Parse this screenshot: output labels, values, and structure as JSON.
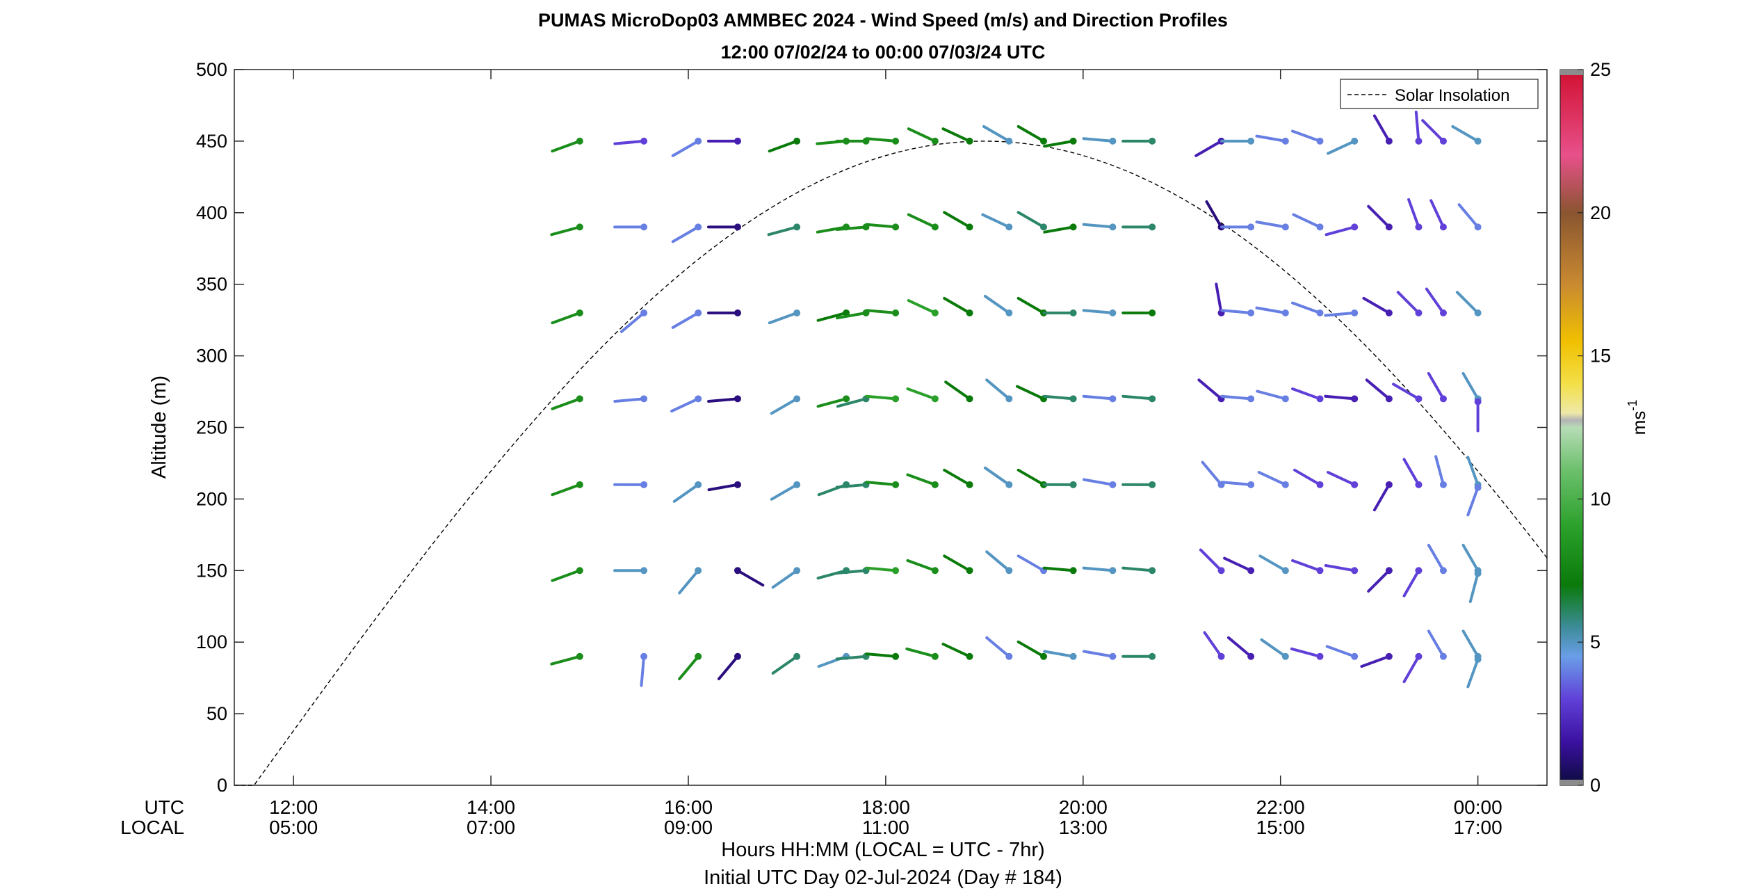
{
  "chart_data": {
    "type": "wind-barb-profile",
    "title": "PUMAS MicroDop03 AMMBEC 2024 - Wind Speed (m/s) and Direction Profiles",
    "subtitle": "12:00 07/02/24 to 00:00 07/03/24  UTC",
    "ylabel": "Altitude (m)",
    "ylim": [
      0,
      500
    ],
    "yticks": [
      "0",
      "50",
      "100",
      "150",
      "200",
      "250",
      "300",
      "350",
      "400",
      "450",
      "500"
    ],
    "xlim_hours": [
      11.4,
      24.7
    ],
    "xticks_utc": [
      "12:00",
      "14:00",
      "16:00",
      "18:00",
      "20:00",
      "22:00",
      "00:00"
    ],
    "xticks_local": [
      "05:00",
      "07:00",
      "09:00",
      "11:00",
      "13:00",
      "15:00",
      "17:00"
    ],
    "xtick_hours": [
      12,
      14,
      16,
      18,
      20,
      22,
      24
    ],
    "row_label_utc": "UTC",
    "row_label_local": "LOCAL",
    "xlabel": "Hours HH:MM  (LOCAL = UTC - 7hr)",
    "xlabel2": "Initial UTC Day 02-Jul-2024 (Day # 184)",
    "legend": {
      "label": "Solar Insolation",
      "placement": "top-right"
    },
    "colorbar": {
      "range": [
        0,
        25
      ],
      "ticks": [
        "0",
        "5",
        "10",
        "15",
        "20",
        "25"
      ],
      "label": "ms",
      "label_exponent": "-1"
    },
    "solar_curve": {
      "start_hour": 11.6,
      "peak_hour": 19.0,
      "peak_altitude": 450,
      "style": "dashed"
    },
    "times_hours": [
      14.9,
      15.55,
      16.1,
      16.5,
      17.1,
      17.6,
      17.8,
      18.1,
      18.5,
      18.85,
      19.25,
      19.6,
      19.9,
      20.3,
      20.7,
      21.4,
      21.7,
      22.05,
      22.4,
      22.75,
      23.1,
      23.4,
      23.65,
      24.0
    ],
    "altitudes": [
      90,
      150,
      210,
      270,
      330,
      390,
      450
    ],
    "vectors": [
      {
        "t": 14.9,
        "z": 90,
        "dir": 255,
        "spd": 8
      },
      {
        "t": 14.9,
        "z": 150,
        "dir": 250,
        "spd": 8
      },
      {
        "t": 14.9,
        "z": 210,
        "dir": 250,
        "spd": 8
      },
      {
        "t": 14.9,
        "z": 270,
        "dir": 250,
        "spd": 8
      },
      {
        "t": 14.9,
        "z": 330,
        "dir": 250,
        "spd": 8
      },
      {
        "t": 14.9,
        "z": 390,
        "dir": 255,
        "spd": 8
      },
      {
        "t": 14.9,
        "z": 450,
        "dir": 250,
        "spd": 8
      },
      {
        "t": 15.55,
        "z": 90,
        "dir": 185,
        "spd": 4
      },
      {
        "t": 15.55,
        "z": 150,
        "dir": 270,
        "spd": 5
      },
      {
        "t": 15.55,
        "z": 210,
        "dir": 270,
        "spd": 4
      },
      {
        "t": 15.55,
        "z": 270,
        "dir": 265,
        "spd": 4
      },
      {
        "t": 15.55,
        "z": 330,
        "dir": 230,
        "spd": 4
      },
      {
        "t": 15.55,
        "z": 390,
        "dir": 270,
        "spd": 4
      },
      {
        "t": 15.55,
        "z": 450,
        "dir": 265,
        "spd": 3
      },
      {
        "t": 16.1,
        "z": 90,
        "dir": 220,
        "spd": 8
      },
      {
        "t": 16.1,
        "z": 150,
        "dir": 220,
        "spd": 5
      },
      {
        "t": 16.1,
        "z": 210,
        "dir": 235,
        "spd": 5
      },
      {
        "t": 16.1,
        "z": 270,
        "dir": 245,
        "spd": 4
      },
      {
        "t": 16.1,
        "z": 330,
        "dir": 240,
        "spd": 4
      },
      {
        "t": 16.1,
        "z": 390,
        "dir": 240,
        "spd": 4
      },
      {
        "t": 16.1,
        "z": 450,
        "dir": 240,
        "spd": 4
      },
      {
        "t": 16.5,
        "z": 90,
        "dir": 220,
        "spd": 1
      },
      {
        "t": 16.5,
        "z": 150,
        "dir": 120,
        "spd": 1
      },
      {
        "t": 16.5,
        "z": 210,
        "dir": 260,
        "spd": 1
      },
      {
        "t": 16.5,
        "z": 270,
        "dir": 265,
        "spd": 1
      },
      {
        "t": 16.5,
        "z": 330,
        "dir": 270,
        "spd": 1
      },
      {
        "t": 16.5,
        "z": 390,
        "dir": 270,
        "spd": 1
      },
      {
        "t": 16.5,
        "z": 450,
        "dir": 270,
        "spd": 2
      },
      {
        "t": 17.1,
        "z": 90,
        "dir": 235,
        "spd": 6
      },
      {
        "t": 17.1,
        "z": 150,
        "dir": 235,
        "spd": 5
      },
      {
        "t": 17.1,
        "z": 210,
        "dir": 240,
        "spd": 5
      },
      {
        "t": 17.1,
        "z": 270,
        "dir": 240,
        "spd": 5
      },
      {
        "t": 17.1,
        "z": 330,
        "dir": 250,
        "spd": 5
      },
      {
        "t": 17.1,
        "z": 390,
        "dir": 255,
        "spd": 6
      },
      {
        "t": 17.1,
        "z": 450,
        "dir": 250,
        "spd": 7
      },
      {
        "t": 17.6,
        "z": 90,
        "dir": 250,
        "spd": 5
      },
      {
        "t": 17.6,
        "z": 150,
        "dir": 255,
        "spd": 6
      },
      {
        "t": 17.6,
        "z": 210,
        "dir": 250,
        "spd": 6
      },
      {
        "t": 17.6,
        "z": 270,
        "dir": 255,
        "spd": 8
      },
      {
        "t": 17.6,
        "z": 330,
        "dir": 255,
        "spd": 7
      },
      {
        "t": 17.6,
        "z": 390,
        "dir": 260,
        "spd": 8
      },
      {
        "t": 17.6,
        "z": 450,
        "dir": 265,
        "spd": 8
      },
      {
        "t": 17.8,
        "z": 90,
        "dir": 265,
        "spd": 6
      },
      {
        "t": 17.8,
        "z": 150,
        "dir": 265,
        "spd": 6
      },
      {
        "t": 17.8,
        "z": 210,
        "dir": 265,
        "spd": 6
      },
      {
        "t": 17.8,
        "z": 270,
        "dir": 255,
        "spd": 6
      },
      {
        "t": 17.8,
        "z": 330,
        "dir": 260,
        "spd": 8
      },
      {
        "t": 17.8,
        "z": 390,
        "dir": 265,
        "spd": 8
      },
      {
        "t": 17.8,
        "z": 450,
        "dir": 270,
        "spd": 8
      },
      {
        "t": 18.1,
        "z": 90,
        "dir": 275,
        "spd": 7
      },
      {
        "t": 18.1,
        "z": 150,
        "dir": 275,
        "spd": 9
      },
      {
        "t": 18.1,
        "z": 210,
        "dir": 275,
        "spd": 8
      },
      {
        "t": 18.1,
        "z": 270,
        "dir": 275,
        "spd": 9
      },
      {
        "t": 18.1,
        "z": 330,
        "dir": 275,
        "spd": 8
      },
      {
        "t": 18.1,
        "z": 390,
        "dir": 275,
        "spd": 8
      },
      {
        "t": 18.1,
        "z": 450,
        "dir": 275,
        "spd": 8
      },
      {
        "t": 18.5,
        "z": 90,
        "dir": 285,
        "spd": 8
      },
      {
        "t": 18.5,
        "z": 150,
        "dir": 290,
        "spd": 8
      },
      {
        "t": 18.5,
        "z": 210,
        "dir": 290,
        "spd": 8
      },
      {
        "t": 18.5,
        "z": 270,
        "dir": 290,
        "spd": 9
      },
      {
        "t": 18.5,
        "z": 330,
        "dir": 295,
        "spd": 9
      },
      {
        "t": 18.5,
        "z": 390,
        "dir": 295,
        "spd": 8
      },
      {
        "t": 18.5,
        "z": 450,
        "dir": 295,
        "spd": 8
      },
      {
        "t": 18.85,
        "z": 90,
        "dir": 295,
        "spd": 7
      },
      {
        "t": 18.85,
        "z": 150,
        "dir": 300,
        "spd": 7
      },
      {
        "t": 18.85,
        "z": 210,
        "dir": 300,
        "spd": 7
      },
      {
        "t": 18.85,
        "z": 270,
        "dir": 305,
        "spd": 7
      },
      {
        "t": 18.85,
        "z": 330,
        "dir": 300,
        "spd": 7
      },
      {
        "t": 18.85,
        "z": 390,
        "dir": 300,
        "spd": 7
      },
      {
        "t": 18.85,
        "z": 450,
        "dir": 295,
        "spd": 7
      },
      {
        "t": 19.25,
        "z": 90,
        "dir": 310,
        "spd": 4
      },
      {
        "t": 19.25,
        "z": 150,
        "dir": 310,
        "spd": 5
      },
      {
        "t": 19.25,
        "z": 210,
        "dir": 305,
        "spd": 5
      },
      {
        "t": 19.25,
        "z": 270,
        "dir": 310,
        "spd": 5
      },
      {
        "t": 19.25,
        "z": 330,
        "dir": 305,
        "spd": 5
      },
      {
        "t": 19.25,
        "z": 390,
        "dir": 295,
        "spd": 5
      },
      {
        "t": 19.25,
        "z": 450,
        "dir": 300,
        "spd": 5
      },
      {
        "t": 19.6,
        "z": 90,
        "dir": 300,
        "spd": 7
      },
      {
        "t": 19.6,
        "z": 150,
        "dir": 300,
        "spd": 4
      },
      {
        "t": 19.6,
        "z": 210,
        "dir": 300,
        "spd": 7
      },
      {
        "t": 19.6,
        "z": 270,
        "dir": 295,
        "spd": 7
      },
      {
        "t": 19.6,
        "z": 330,
        "dir": 300,
        "spd": 7
      },
      {
        "t": 19.6,
        "z": 390,
        "dir": 300,
        "spd": 6
      },
      {
        "t": 19.6,
        "z": 450,
        "dir": 300,
        "spd": 7
      },
      {
        "t": 19.9,
        "z": 90,
        "dir": 280,
        "spd": 5
      },
      {
        "t": 19.9,
        "z": 150,
        "dir": 275,
        "spd": 7
      },
      {
        "t": 19.9,
        "z": 210,
        "dir": 270,
        "spd": 6
      },
      {
        "t": 19.9,
        "z": 270,
        "dir": 275,
        "spd": 6
      },
      {
        "t": 19.9,
        "z": 330,
        "dir": 270,
        "spd": 6
      },
      {
        "t": 19.9,
        "z": 390,
        "dir": 260,
        "spd": 7
      },
      {
        "t": 19.9,
        "z": 450,
        "dir": 260,
        "spd": 7
      },
      {
        "t": 20.3,
        "z": 90,
        "dir": 280,
        "spd": 4
      },
      {
        "t": 20.3,
        "z": 150,
        "dir": 275,
        "spd": 5
      },
      {
        "t": 20.3,
        "z": 210,
        "dir": 280,
        "spd": 4
      },
      {
        "t": 20.3,
        "z": 270,
        "dir": 275,
        "spd": 4
      },
      {
        "t": 20.3,
        "z": 330,
        "dir": 275,
        "spd": 5
      },
      {
        "t": 20.3,
        "z": 390,
        "dir": 275,
        "spd": 5
      },
      {
        "t": 20.3,
        "z": 450,
        "dir": 275,
        "spd": 5
      },
      {
        "t": 20.7,
        "z": 90,
        "dir": 270,
        "spd": 6
      },
      {
        "t": 20.7,
        "z": 150,
        "dir": 275,
        "spd": 6
      },
      {
        "t": 20.7,
        "z": 210,
        "dir": 270,
        "spd": 6
      },
      {
        "t": 20.7,
        "z": 270,
        "dir": 275,
        "spd": 6
      },
      {
        "t": 20.7,
        "z": 330,
        "dir": 270,
        "spd": 7
      },
      {
        "t": 20.7,
        "z": 390,
        "dir": 270,
        "spd": 6
      },
      {
        "t": 20.7,
        "z": 450,
        "dir": 270,
        "spd": 6
      },
      {
        "t": 21.4,
        "z": 90,
        "dir": 325,
        "spd": 3
      },
      {
        "t": 21.4,
        "z": 150,
        "dir": 315,
        "spd": 3
      },
      {
        "t": 21.4,
        "z": 210,
        "dir": 320,
        "spd": 4
      },
      {
        "t": 21.4,
        "z": 270,
        "dir": 310,
        "spd": 2
      },
      {
        "t": 21.4,
        "z": 330,
        "dir": 350,
        "spd": 2
      },
      {
        "t": 21.4,
        "z": 390,
        "dir": 330,
        "spd": 1
      },
      {
        "t": 21.4,
        "z": 450,
        "dir": 240,
        "spd": 2
      },
      {
        "t": 21.7,
        "z": 90,
        "dir": 310,
        "spd": 2
      },
      {
        "t": 21.7,
        "z": 150,
        "dir": 295,
        "spd": 2
      },
      {
        "t": 21.7,
        "z": 210,
        "dir": 275,
        "spd": 4
      },
      {
        "t": 21.7,
        "z": 270,
        "dir": 275,
        "spd": 4
      },
      {
        "t": 21.7,
        "z": 330,
        "dir": 275,
        "spd": 4
      },
      {
        "t": 21.7,
        "z": 390,
        "dir": 270,
        "spd": 4
      },
      {
        "t": 21.7,
        "z": 450,
        "dir": 270,
        "spd": 5
      },
      {
        "t": 22.05,
        "z": 90,
        "dir": 305,
        "spd": 5
      },
      {
        "t": 22.05,
        "z": 150,
        "dir": 300,
        "spd": 5
      },
      {
        "t": 22.05,
        "z": 210,
        "dir": 295,
        "spd": 4
      },
      {
        "t": 22.05,
        "z": 270,
        "dir": 285,
        "spd": 4
      },
      {
        "t": 22.05,
        "z": 330,
        "dir": 280,
        "spd": 4
      },
      {
        "t": 22.05,
        "z": 390,
        "dir": 280,
        "spd": 4
      },
      {
        "t": 22.05,
        "z": 450,
        "dir": 280,
        "spd": 4
      },
      {
        "t": 22.4,
        "z": 90,
        "dir": 285,
        "spd": 3
      },
      {
        "t": 22.4,
        "z": 150,
        "dir": 290,
        "spd": 3
      },
      {
        "t": 22.4,
        "z": 210,
        "dir": 300,
        "spd": 3
      },
      {
        "t": 22.4,
        "z": 270,
        "dir": 290,
        "spd": 3
      },
      {
        "t": 22.4,
        "z": 330,
        "dir": 290,
        "spd": 4
      },
      {
        "t": 22.4,
        "z": 390,
        "dir": 295,
        "spd": 4
      },
      {
        "t": 22.4,
        "z": 450,
        "dir": 290,
        "spd": 4
      },
      {
        "t": 22.75,
        "z": 90,
        "dir": 290,
        "spd": 4
      },
      {
        "t": 22.75,
        "z": 150,
        "dir": 280,
        "spd": 3
      },
      {
        "t": 22.75,
        "z": 210,
        "dir": 295,
        "spd": 3
      },
      {
        "t": 22.75,
        "z": 270,
        "dir": 275,
        "spd": 2
      },
      {
        "t": 22.75,
        "z": 330,
        "dir": 265,
        "spd": 4
      },
      {
        "t": 22.75,
        "z": 390,
        "dir": 255,
        "spd": 3
      },
      {
        "t": 22.75,
        "z": 450,
        "dir": 245,
        "spd": 5
      },
      {
        "t": 23.1,
        "z": 90,
        "dir": 250,
        "spd": 2
      },
      {
        "t": 23.1,
        "z": 150,
        "dir": 225,
        "spd": 2
      },
      {
        "t": 23.1,
        "z": 210,
        "dir": 210,
        "spd": 2
      },
      {
        "t": 23.1,
        "z": 270,
        "dir": 310,
        "spd": 2
      },
      {
        "t": 23.1,
        "z": 330,
        "dir": 300,
        "spd": 2
      },
      {
        "t": 23.1,
        "z": 390,
        "dir": 315,
        "spd": 2
      },
      {
        "t": 23.1,
        "z": 450,
        "dir": 330,
        "spd": 2
      },
      {
        "t": 23.4,
        "z": 90,
        "dir": 210,
        "spd": 3
      },
      {
        "t": 23.4,
        "z": 150,
        "dir": 210,
        "spd": 3
      },
      {
        "t": 23.4,
        "z": 210,
        "dir": 330,
        "spd": 3
      },
      {
        "t": 23.4,
        "z": 270,
        "dir": 300,
        "spd": 3
      },
      {
        "t": 23.4,
        "z": 330,
        "dir": 315,
        "spd": 3
      },
      {
        "t": 23.4,
        "z": 390,
        "dir": 340,
        "spd": 3
      },
      {
        "t": 23.4,
        "z": 450,
        "dir": 355,
        "spd": 3
      },
      {
        "t": 23.65,
        "z": 90,
        "dir": 330,
        "spd": 4
      },
      {
        "t": 23.65,
        "z": 150,
        "dir": 330,
        "spd": 4
      },
      {
        "t": 23.65,
        "z": 210,
        "dir": 345,
        "spd": 4
      },
      {
        "t": 23.65,
        "z": 270,
        "dir": 330,
        "spd": 3
      },
      {
        "t": 23.65,
        "z": 330,
        "dir": 325,
        "spd": 3
      },
      {
        "t": 23.65,
        "z": 390,
        "dir": 335,
        "spd": 3
      },
      {
        "t": 23.65,
        "z": 450,
        "dir": 315,
        "spd": 3
      },
      {
        "t": 24.0,
        "z": 90,
        "dir": 330,
        "spd": 5
      },
      {
        "t": 24.0,
        "z": 150,
        "dir": 330,
        "spd": 5
      },
      {
        "t": 24.0,
        "z": 210,
        "dir": 340,
        "spd": 5
      },
      {
        "t": 24.0,
        "z": 270,
        "dir": 330,
        "spd": 5
      },
      {
        "t": 24.0,
        "z": 330,
        "dir": 315,
        "spd": 5
      },
      {
        "t": 24.0,
        "z": 390,
        "dir": 320,
        "spd": 4
      },
      {
        "t": 24.0,
        "z": 450,
        "dir": 300,
        "spd": 5
      },
      {
        "t": 24.0,
        "z": 88,
        "dir": 200,
        "spd": 5
      },
      {
        "t": 24.0,
        "z": 148,
        "dir": 195,
        "spd": 5
      },
      {
        "t": 24.0,
        "z": 208,
        "dir": 200,
        "spd": 4
      },
      {
        "t": 24.0,
        "z": 268,
        "dir": 180,
        "spd": 3
      }
    ]
  }
}
